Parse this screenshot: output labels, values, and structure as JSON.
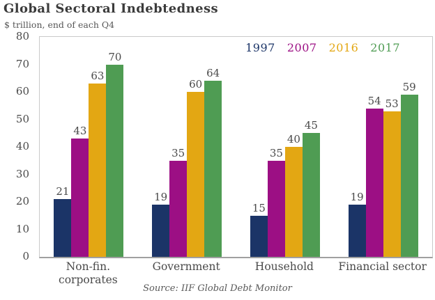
{
  "header": {
    "title": "Global Sectoral Indebtedness",
    "subtitle": "$ trillion, end of each Q4"
  },
  "source_note": "Source: IIF Global Debt Monitor",
  "colors": {
    "axis_text": "#4a4a4a",
    "title_text": "#3b3b3b",
    "plot_border": "#c9c9c9",
    "baseline": "#a0a0a0"
  },
  "chart_data": {
    "type": "bar",
    "title": "Global Sectoral Indebtedness",
    "subtitle": "$ trillion, end of each Q4",
    "categories": [
      "Non-fin. corporates",
      "Government",
      "Household",
      "Financial sector"
    ],
    "category_label_lines": [
      [
        "Non-fin.",
        "corporates"
      ],
      [
        "Government"
      ],
      [
        "Household"
      ],
      [
        "Financial sector"
      ]
    ],
    "series": [
      {
        "name": "1997",
        "color": "#1b3467",
        "values": [
          21,
          19,
          15,
          19
        ]
      },
      {
        "name": "2007",
        "color": "#9c0f84",
        "values": [
          43,
          35,
          35,
          54
        ]
      },
      {
        "name": "2016",
        "color": "#e3a713",
        "values": [
          63,
          60,
          40,
          53
        ]
      },
      {
        "name": "2017",
        "color": "#4f9c53",
        "values": [
          70,
          64,
          45,
          59
        ]
      }
    ],
    "ylim": [
      0,
      80
    ],
    "yticks": [
      0,
      10,
      20,
      30,
      40,
      50,
      60,
      70,
      80
    ],
    "data_labels": true,
    "grid": false,
    "legend_position": "top-right",
    "source": "Source: IIF Global Debt Monitor"
  }
}
